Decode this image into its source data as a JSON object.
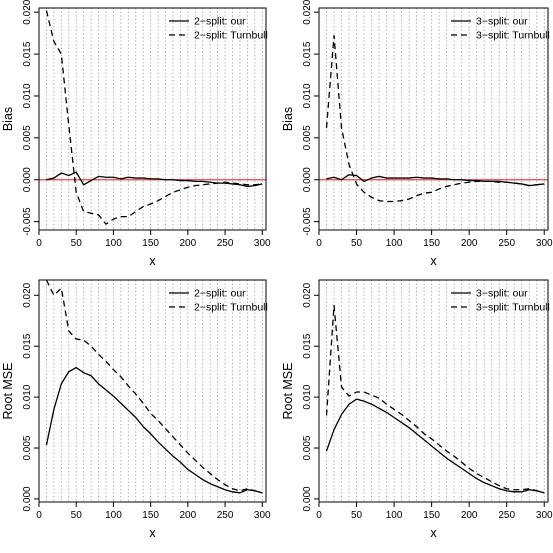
{
  "chart_data": [
    {
      "type": "line",
      "panel": "top-left",
      "xlabel": "x",
      "ylabel": "Bias",
      "xlim": [
        0,
        305
      ],
      "ylim": [
        -0.006,
        0.0205
      ],
      "xticks": [
        0,
        50,
        100,
        150,
        200,
        250,
        300
      ],
      "yticks": [
        -0.005,
        0.0,
        0.005,
        0.01,
        0.015,
        0.02
      ],
      "ytick_labels": [
        "-0.005",
        "0.000",
        "0.005",
        "0.010",
        "0.015",
        "0.020"
      ],
      "grid": "vertical dotted every 10",
      "reference_line": {
        "y": 0,
        "color": "#e8443a"
      },
      "legend": "top-right",
      "series": [
        {
          "name": "2−split: our",
          "style": "solid",
          "x": [
            10,
            20,
            30,
            40,
            50,
            60,
            70,
            80,
            90,
            100,
            110,
            120,
            130,
            140,
            150,
            160,
            170,
            180,
            190,
            200,
            210,
            220,
            230,
            240,
            250,
            260,
            270,
            280,
            290,
            300
          ],
          "y": [
            0.0,
            0.0002,
            0.0008,
            0.0005,
            0.0009,
            -0.0006,
            -0.0001,
            0.0004,
            0.0003,
            0.0003,
            0.0001,
            0.0003,
            0.0002,
            0.0002,
            0.0001,
            0.0001,
            0.0,
            0.0,
            -0.0001,
            -0.0001,
            -0.0002,
            -0.0002,
            -0.0003,
            -0.0004,
            -0.0004,
            -0.0005,
            -0.0006,
            -0.0008,
            -0.0007,
            -0.0005
          ]
        },
        {
          "name": "2−split: Turnbull",
          "style": "dashed",
          "x": [
            10,
            20,
            30,
            40,
            50,
            60,
            70,
            80,
            90,
            100,
            110,
            120,
            130,
            140,
            150,
            160,
            170,
            180,
            190,
            200,
            210,
            220,
            230,
            240,
            250,
            260,
            270,
            280,
            290,
            300
          ],
          "y": [
            0.0202,
            0.0165,
            0.015,
            0.0065,
            -0.0015,
            -0.0038,
            -0.004,
            -0.0042,
            -0.0053,
            -0.0047,
            -0.0044,
            -0.0044,
            -0.0038,
            -0.0032,
            -0.0029,
            -0.0025,
            -0.002,
            -0.0015,
            -0.0012,
            -0.0009,
            -0.0007,
            -0.0006,
            -0.0005,
            -0.0004,
            -0.0003,
            -0.0004,
            -0.0005,
            -0.0006,
            -0.0006,
            -0.0005
          ]
        }
      ]
    },
    {
      "type": "line",
      "panel": "top-right",
      "xlabel": "x",
      "ylabel": "Bias",
      "xlim": [
        0,
        305
      ],
      "ylim": [
        -0.006,
        0.0205
      ],
      "xticks": [
        0,
        50,
        100,
        150,
        200,
        250,
        300
      ],
      "yticks": [
        -0.005,
        0.0,
        0.005,
        0.01,
        0.015,
        0.02
      ],
      "ytick_labels": [
        "-0.005",
        "0.000",
        "0.005",
        "0.010",
        "0.015",
        "0.020"
      ],
      "grid": "vertical dotted every 10",
      "reference_line": {
        "y": 0,
        "color": "#e8443a"
      },
      "legend": "top-right",
      "series": [
        {
          "name": "3−split: our",
          "style": "solid",
          "x": [
            10,
            20,
            30,
            40,
            50,
            60,
            70,
            80,
            90,
            100,
            110,
            120,
            130,
            140,
            150,
            160,
            170,
            180,
            190,
            200,
            210,
            220,
            230,
            240,
            250,
            260,
            270,
            280,
            290,
            300
          ],
          "y": [
            0.0001,
            0.0003,
            0.0,
            0.0006,
            0.0005,
            -0.0002,
            0.0002,
            0.0004,
            0.0002,
            0.0002,
            0.0002,
            0.0002,
            0.0003,
            0.0002,
            0.0002,
            0.0001,
            0.0001,
            0.0,
            0.0,
            -0.0001,
            -0.0001,
            -0.0002,
            -0.0002,
            -0.0002,
            -0.0003,
            -0.0004,
            -0.0005,
            -0.0007,
            -0.0006,
            -0.0005
          ]
        },
        {
          "name": "3−split: Turnbull",
          "style": "dashed",
          "x": [
            10,
            20,
            30,
            40,
            50,
            60,
            70,
            80,
            90,
            100,
            110,
            120,
            130,
            140,
            150,
            160,
            170,
            180,
            190,
            200,
            210,
            220,
            230,
            240,
            250,
            260,
            270,
            280,
            290,
            300
          ],
          "y": [
            0.0062,
            0.0172,
            0.0062,
            0.0018,
            -0.0005,
            -0.0015,
            -0.0021,
            -0.0025,
            -0.0026,
            -0.0026,
            -0.0025,
            -0.0023,
            -0.0019,
            -0.0016,
            -0.0015,
            -0.0011,
            -0.0008,
            -0.0006,
            -0.0004,
            -0.0003,
            -0.0002,
            -0.0002,
            -0.0002,
            -0.0003,
            -0.0003,
            -0.0004,
            -0.0005,
            -0.0007,
            -0.0006,
            -0.0005
          ]
        }
      ]
    },
    {
      "type": "line",
      "panel": "bottom-left",
      "xlabel": "x",
      "ylabel": "Root MSE",
      "xlim": [
        0,
        305
      ],
      "ylim": [
        -0.0003,
        0.0215
      ],
      "xticks": [
        0,
        50,
        100,
        150,
        200,
        250,
        300
      ],
      "yticks": [
        0.0,
        0.005,
        0.01,
        0.015,
        0.02
      ],
      "ytick_labels": [
        "0.000",
        "0.005",
        "0.010",
        "0.015",
        "0.020"
      ],
      "grid": "vertical dotted every 10",
      "legend": "top-right",
      "series": [
        {
          "name": "2−split: our",
          "style": "solid",
          "x": [
            10,
            20,
            30,
            40,
            50,
            60,
            70,
            80,
            90,
            100,
            110,
            120,
            130,
            140,
            150,
            160,
            170,
            180,
            190,
            200,
            210,
            220,
            230,
            240,
            250,
            260,
            270,
            280,
            290,
            300
          ],
          "y": [
            0.0053,
            0.0088,
            0.0113,
            0.0125,
            0.0129,
            0.0124,
            0.0121,
            0.0113,
            0.0107,
            0.0101,
            0.0094,
            0.0087,
            0.008,
            0.0071,
            0.0064,
            0.0056,
            0.0049,
            0.0042,
            0.0036,
            0.0029,
            0.0024,
            0.0019,
            0.0015,
            0.0012,
            0.0009,
            0.0007,
            0.0006,
            0.0009,
            0.0008,
            0.0006
          ]
        },
        {
          "name": "2−split: Turnbull",
          "style": "dashed",
          "x": [
            10,
            20,
            30,
            40,
            50,
            60,
            70,
            80,
            90,
            100,
            110,
            120,
            130,
            140,
            150,
            160,
            170,
            180,
            190,
            200,
            210,
            220,
            230,
            240,
            250,
            260,
            270,
            280,
            290,
            300
          ],
          "y": [
            0.0215,
            0.02,
            0.0207,
            0.0165,
            0.0157,
            0.0156,
            0.015,
            0.0142,
            0.0135,
            0.0127,
            0.012,
            0.0111,
            0.0103,
            0.0094,
            0.0084,
            0.0077,
            0.0069,
            0.0061,
            0.0053,
            0.0045,
            0.0038,
            0.0031,
            0.0025,
            0.0019,
            0.0014,
            0.001,
            0.0008,
            0.001,
            0.0008,
            0.0006
          ]
        }
      ]
    },
    {
      "type": "line",
      "panel": "bottom-right",
      "xlabel": "x",
      "ylabel": "Root MSE",
      "xlim": [
        0,
        305
      ],
      "ylim": [
        -0.0003,
        0.0215
      ],
      "xticks": [
        0,
        50,
        100,
        150,
        200,
        250,
        300
      ],
      "yticks": [
        0.0,
        0.005,
        0.01,
        0.015,
        0.02
      ],
      "ytick_labels": [
        "0.000",
        "0.005",
        "0.010",
        "0.015",
        "0.020"
      ],
      "grid": "vertical dotted every 10",
      "legend": "top-right",
      "series": [
        {
          "name": "3−split: our",
          "style": "solid",
          "x": [
            10,
            20,
            30,
            40,
            50,
            60,
            70,
            80,
            90,
            100,
            110,
            120,
            130,
            140,
            150,
            160,
            170,
            180,
            190,
            200,
            210,
            220,
            230,
            240,
            250,
            260,
            270,
            280,
            290,
            300
          ],
          "y": [
            0.0047,
            0.0068,
            0.0083,
            0.0093,
            0.0098,
            0.0096,
            0.0093,
            0.0089,
            0.0085,
            0.008,
            0.0075,
            0.007,
            0.0064,
            0.0058,
            0.0052,
            0.0046,
            0.004,
            0.0035,
            0.003,
            0.0025,
            0.002,
            0.0016,
            0.0013,
            0.001,
            0.0008,
            0.0007,
            0.0007,
            0.0009,
            0.0008,
            0.0006
          ]
        },
        {
          "name": "3−split: Turnbull",
          "style": "dashed",
          "x": [
            10,
            20,
            30,
            40,
            50,
            60,
            70,
            80,
            90,
            100,
            110,
            120,
            130,
            140,
            150,
            160,
            170,
            180,
            190,
            200,
            210,
            220,
            230,
            240,
            250,
            260,
            270,
            280,
            290,
            300
          ],
          "y": [
            0.0082,
            0.019,
            0.011,
            0.0101,
            0.0105,
            0.0105,
            0.0102,
            0.0099,
            0.0093,
            0.0088,
            0.0083,
            0.0077,
            0.0071,
            0.0064,
            0.0059,
            0.0053,
            0.0047,
            0.0042,
            0.0036,
            0.003,
            0.0025,
            0.0021,
            0.0017,
            0.0013,
            0.001,
            0.0009,
            0.0009,
            0.001,
            0.0008,
            0.0006
          ]
        }
      ]
    }
  ]
}
